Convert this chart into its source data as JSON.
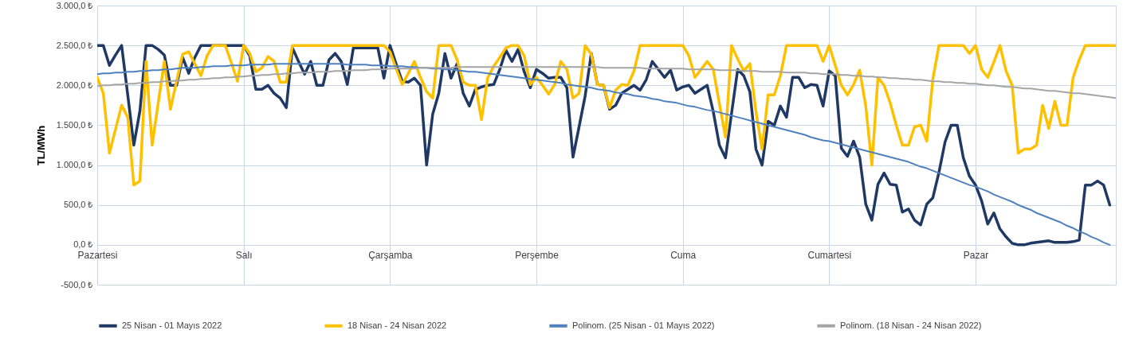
{
  "chart_data": {
    "type": "line",
    "ylabel": "TL/MWh",
    "categories": [
      "Pazartesi",
      null,
      null,
      null,
      null,
      null,
      null,
      null,
      null,
      null,
      null,
      null,
      null,
      null,
      null,
      null,
      null,
      null,
      null,
      null,
      null,
      null,
      null,
      null,
      "Salı",
      null,
      null,
      null,
      null,
      null,
      null,
      null,
      null,
      null,
      null,
      null,
      null,
      null,
      null,
      null,
      null,
      null,
      null,
      null,
      null,
      null,
      null,
      null,
      "Çarşamba",
      null,
      null,
      null,
      null,
      null,
      null,
      null,
      null,
      null,
      null,
      null,
      null,
      null,
      null,
      null,
      null,
      null,
      null,
      null,
      null,
      null,
      null,
      null,
      "Perşembe",
      null,
      null,
      null,
      null,
      null,
      null,
      null,
      null,
      null,
      null,
      null,
      null,
      null,
      null,
      null,
      null,
      null,
      null,
      null,
      null,
      null,
      null,
      null,
      "Cuma",
      null,
      null,
      null,
      null,
      null,
      null,
      null,
      null,
      null,
      null,
      null,
      null,
      null,
      null,
      null,
      null,
      null,
      null,
      null,
      null,
      null,
      null,
      null,
      "Cumartesi",
      null,
      null,
      null,
      null,
      null,
      null,
      null,
      null,
      null,
      null,
      null,
      null,
      null,
      null,
      null,
      null,
      null,
      null,
      null,
      null,
      null,
      null,
      null,
      "Pazar",
      null,
      null,
      null,
      null,
      null,
      null,
      null,
      null,
      null,
      null,
      null,
      null,
      null,
      null,
      null,
      null,
      null,
      null,
      null,
      null,
      null,
      null,
      null
    ],
    "ylim": [
      -500,
      3000
    ],
    "yticks": [
      {
        "value": -500,
        "label": "-500,0 ₺"
      },
      {
        "value": 0,
        "label": "0,0 ₺"
      },
      {
        "value": 500,
        "label": "500,0 ₺"
      },
      {
        "value": 1000,
        "label": "1.000,0 ₺"
      },
      {
        "value": 1500,
        "label": "1.500,0 ₺"
      },
      {
        "value": 2000,
        "label": "2.000,0 ₺"
      },
      {
        "value": 2500,
        "label": "2.500,0 ₺"
      },
      {
        "value": 3000,
        "label": "3.000,0 ₺"
      }
    ],
    "grid": true,
    "legend": "bottom",
    "series": [
      {
        "name": "25 Nisan - 01 Mayıs 2022",
        "color": "#1f3864",
        "values": [
          2500,
          2500,
          2250,
          2380,
          2500,
          1880,
          1250,
          1680,
          2500,
          2500,
          2450,
          2380,
          2000,
          2000,
          2350,
          2150,
          2350,
          2500,
          2500,
          2500,
          2500,
          2500,
          2500,
          2500,
          2500,
          2370,
          1950,
          1950,
          2000,
          1900,
          1840,
          1720,
          2470,
          2300,
          2140,
          2300,
          2000,
          2000,
          2320,
          2400,
          2300,
          2010,
          2470,
          2470,
          2470,
          2470,
          2470,
          2090,
          2500,
          2270,
          2050,
          2040,
          2090,
          2000,
          1000,
          1640,
          1900,
          2400,
          2090,
          2270,
          1900,
          1740,
          1950,
          1980,
          2000,
          2010,
          2200,
          2440,
          2300,
          2450,
          2170,
          1970,
          2200,
          2150,
          2090,
          2100,
          2100,
          1970,
          1100,
          1480,
          1870,
          2400,
          2010,
          2000,
          1700,
          1750,
          1900,
          1950,
          2000,
          1940,
          2070,
          2300,
          2200,
          2100,
          2190,
          1940,
          1980,
          2000,
          1900,
          1950,
          2000,
          1670,
          1250,
          1090,
          1650,
          2200,
          2120,
          1920,
          1200,
          1000,
          1550,
          1500,
          1740,
          1600,
          2100,
          2100,
          1970,
          2010,
          2000,
          1740,
          2180,
          2120,
          1210,
          1110,
          1300,
          1100,
          510,
          310,
          760,
          900,
          760,
          750,
          410,
          450,
          310,
          250,
          510,
          590,
          910,
          1290,
          1500,
          1500,
          1090,
          860,
          750,
          550,
          260,
          400,
          200,
          100,
          20,
          0,
          0,
          20,
          30,
          40,
          50,
          30,
          30,
          30,
          40,
          60,
          750,
          750,
          800,
          750,
          500,
          null
        ]
      },
      {
        "name": "18 Nisan - 24 Nisan 2022",
        "color": "#ffc000",
        "values": [
          2100,
          1900,
          1150,
          1450,
          1750,
          1600,
          750,
          800,
          2300,
          1250,
          1780,
          2300,
          1700,
          2050,
          2390,
          2420,
          2270,
          2120,
          2370,
          2500,
          2500,
          2500,
          2280,
          2050,
          2500,
          2400,
          2170,
          2220,
          2360,
          2300,
          2040,
          2040,
          2500,
          2500,
          2500,
          2500,
          2500,
          2500,
          2500,
          2500,
          2500,
          2500,
          2500,
          2500,
          2500,
          2500,
          2500,
          2500,
          2420,
          2210,
          2010,
          2150,
          2300,
          2100,
          1920,
          1840,
          2500,
          2500,
          2500,
          2320,
          2040,
          2000,
          2000,
          1570,
          2090,
          2240,
          2350,
          2470,
          2500,
          2500,
          2370,
          2010,
          2100,
          2000,
          1890,
          2010,
          2300,
          2200,
          1840,
          1900,
          2500,
          2390,
          2010,
          2000,
          1720,
          1940,
          2010,
          2000,
          2180,
          2500,
          2500,
          2500,
          2500,
          2500,
          2500,
          2500,
          2500,
          2370,
          2100,
          2200,
          2300,
          2200,
          1770,
          1350,
          2500,
          2330,
          2180,
          2270,
          1670,
          1200,
          1880,
          1880,
          2120,
          2500,
          2500,
          2500,
          2500,
          2500,
          2500,
          2300,
          2500,
          2250,
          2000,
          1880,
          2010,
          2190,
          1740,
          1000,
          2100,
          2000,
          1780,
          1500,
          1250,
          1250,
          1480,
          1500,
          1300,
          2080,
          2500,
          2500,
          2500,
          2500,
          2500,
          2400,
          2500,
          2200,
          2100,
          2290,
          2500,
          2180,
          2000,
          1150,
          1200,
          1200,
          1250,
          1750,
          1460,
          1800,
          1500,
          1500,
          2100,
          2320,
          2500,
          2500,
          2500,
          2500,
          2500,
          2500
        ]
      },
      {
        "name": "Polinom. (25 Nisan - 01 Mayıs 2022)",
        "color": "#4f81bd",
        "values": [
          2140,
          2150,
          2150,
          2160,
          2160,
          2170,
          2170,
          2180,
          2180,
          2190,
          2190,
          2200,
          2200,
          2210,
          2220,
          2220,
          2220,
          2230,
          2230,
          2240,
          2240,
          2240,
          2250,
          2250,
          2250,
          2260,
          2260,
          2260,
          2260,
          2270,
          2270,
          2270,
          2270,
          2270,
          2270,
          2270,
          2270,
          2270,
          2270,
          2270,
          2270,
          2260,
          2260,
          2260,
          2260,
          2250,
          2250,
          2250,
          2240,
          2240,
          2240,
          2230,
          2230,
          2220,
          2220,
          2210,
          2210,
          2200,
          2200,
          2190,
          2180,
          2170,
          2170,
          2160,
          2150,
          2140,
          2130,
          2120,
          2110,
          2100,
          2090,
          2080,
          2070,
          2060,
          2050,
          2040,
          2030,
          2010,
          2000,
          1990,
          1980,
          1970,
          1950,
          1940,
          1930,
          1910,
          1900,
          1890,
          1870,
          1860,
          1850,
          1830,
          1820,
          1800,
          1790,
          1780,
          1760,
          1740,
          1730,
          1710,
          1690,
          1680,
          1660,
          1640,
          1620,
          1600,
          1580,
          1560,
          1540,
          1520,
          1500,
          1480,
          1460,
          1440,
          1420,
          1400,
          1380,
          1350,
          1330,
          1310,
          1300,
          1280,
          1260,
          1240,
          1220,
          1200,
          1180,
          1160,
          1140,
          1120,
          1100,
          1080,
          1060,
          1040,
          1010,
          980,
          960,
          930,
          900,
          870,
          840,
          810,
          780,
          750,
          730,
          700,
          670,
          630,
          600,
          570,
          540,
          500,
          470,
          440,
          400,
          370,
          340,
          310,
          280,
          240,
          210,
          170,
          140,
          100,
          70,
          30,
          0,
          null
        ]
      },
      {
        "name": "Polinom. (18 Nisan - 24 Nisan 2022)",
        "color": "#a5a5a5",
        "values": [
          1990,
          2000,
          2000,
          2010,
          2010,
          2020,
          2020,
          2030,
          2030,
          2040,
          2040,
          2050,
          2050,
          2060,
          2060,
          2070,
          2070,
          2080,
          2080,
          2090,
          2090,
          2100,
          2100,
          2110,
          2110,
          2120,
          2120,
          2130,
          2130,
          2140,
          2140,
          2150,
          2150,
          2160,
          2160,
          2160,
          2170,
          2170,
          2170,
          2180,
          2180,
          2180,
          2190,
          2190,
          2190,
          2200,
          2200,
          2200,
          2210,
          2210,
          2210,
          2210,
          2210,
          2220,
          2220,
          2220,
          2220,
          2220,
          2220,
          2230,
          2230,
          2230,
          2230,
          2230,
          2230,
          2230,
          2230,
          2230,
          2230,
          2230,
          2230,
          2230,
          2230,
          2230,
          2230,
          2230,
          2230,
          2230,
          2230,
          2230,
          2230,
          2230,
          2230,
          2220,
          2220,
          2220,
          2220,
          2220,
          2220,
          2220,
          2210,
          2210,
          2210,
          2210,
          2210,
          2210,
          2210,
          2200,
          2200,
          2200,
          2200,
          2200,
          2190,
          2190,
          2190,
          2190,
          2180,
          2180,
          2180,
          2170,
          2170,
          2170,
          2170,
          2160,
          2160,
          2160,
          2160,
          2150,
          2150,
          2140,
          2140,
          2140,
          2130,
          2130,
          2120,
          2120,
          2110,
          2110,
          2100,
          2100,
          2090,
          2090,
          2080,
          2080,
          2070,
          2070,
          2060,
          2050,
          2050,
          2040,
          2040,
          2030,
          2030,
          2020,
          2020,
          2010,
          2000,
          2000,
          1990,
          1980,
          1980,
          1970,
          1960,
          1960,
          1950,
          1940,
          1930,
          1930,
          1920,
          1910,
          1900,
          1900,
          1890,
          1880,
          1870,
          1860,
          1850,
          1840
        ]
      }
    ]
  }
}
